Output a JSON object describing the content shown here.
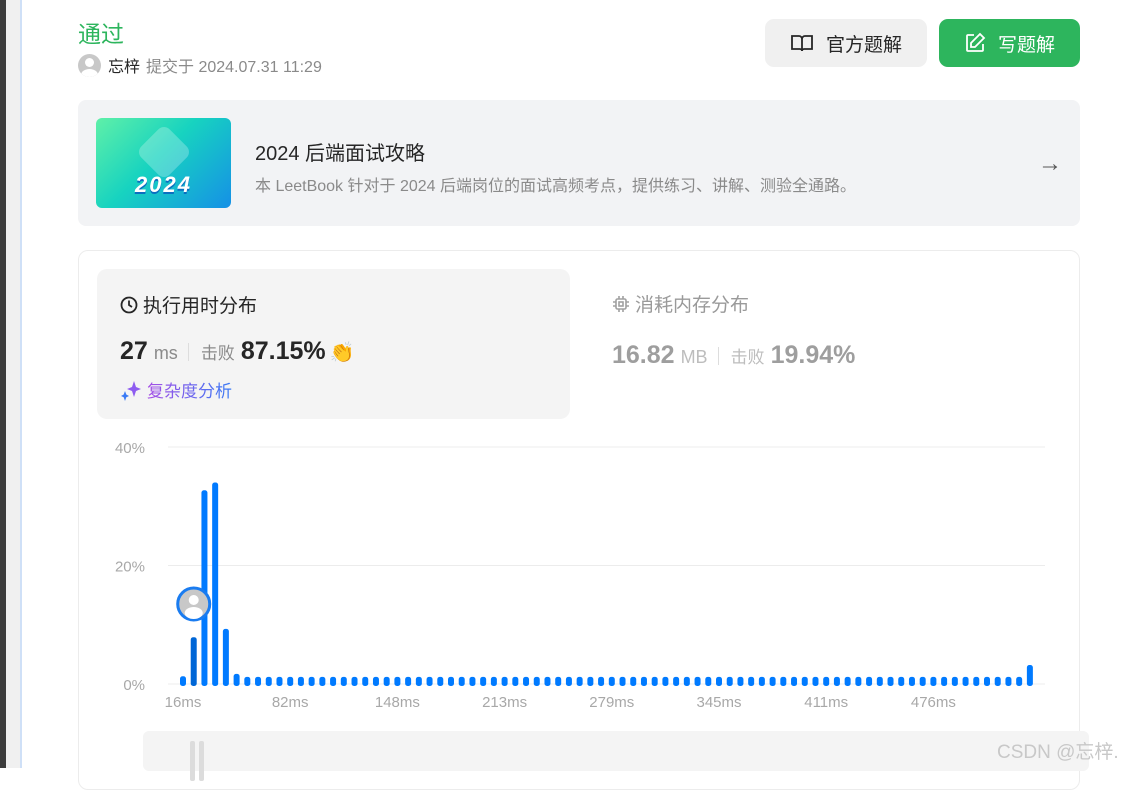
{
  "status": "通过",
  "submission": {
    "user": "忘梓",
    "submitted_text": "提交于 2024.07.31 11:29"
  },
  "buttons": {
    "official_solution": "官方题解",
    "write_solution": "写题解"
  },
  "banner": {
    "image_text": "2024",
    "title": "2024 后端面试攻略",
    "description": "本 LeetBook 针对于 2024 后端岗位的面试高频考点，提供练习、讲解、测验全通路。"
  },
  "runtime": {
    "title": "执行用时分布",
    "value": "27",
    "unit": "ms",
    "beats_label": "击败",
    "beats": "87.15%",
    "complexity_link": "复杂度分析"
  },
  "memory": {
    "title": "消耗内存分布",
    "value": "16.82",
    "unit": "MB",
    "beats_label": "击败",
    "beats": "19.94%"
  },
  "colors": {
    "accent": "#2db55d",
    "bar": "#007aff",
    "bar_user": "#0066d6"
  },
  "watermark": "CSDN @忘梓.",
  "chart_data": {
    "type": "bar",
    "ylim": [
      0,
      40
    ],
    "yticks": [
      "0%",
      "20%",
      "40%"
    ],
    "ytick_values": [
      0,
      20,
      40
    ],
    "xticks": [
      "16ms",
      "82ms",
      "148ms",
      "213ms",
      "279ms",
      "345ms",
      "411ms",
      "476ms"
    ],
    "xtick_every": 10,
    "user_bar_index": 1,
    "grid": true,
    "values": [
      1.3,
      7.9,
      32.7,
      34.0,
      9.3,
      1.7,
      1.2,
      1.2,
      1.2,
      1.2,
      1.2,
      1.2,
      1.2,
      1.2,
      1.2,
      1.2,
      1.2,
      1.2,
      1.2,
      1.2,
      1.2,
      1.2,
      1.2,
      1.2,
      1.2,
      1.2,
      1.2,
      1.2,
      1.2,
      1.2,
      1.2,
      1.2,
      1.2,
      1.2,
      1.2,
      1.2,
      1.2,
      1.2,
      1.2,
      1.2,
      1.2,
      1.2,
      1.2,
      1.2,
      1.2,
      1.2,
      1.2,
      1.2,
      1.2,
      1.2,
      1.2,
      1.2,
      1.2,
      1.2,
      1.2,
      1.2,
      1.2,
      1.2,
      1.2,
      1.2,
      1.2,
      1.2,
      1.2,
      1.2,
      1.2,
      1.2,
      1.2,
      1.2,
      1.2,
      1.2,
      1.2,
      1.2,
      1.2,
      1.2,
      1.2,
      1.2,
      1.2,
      1.2,
      1.2,
      3.2
    ]
  }
}
